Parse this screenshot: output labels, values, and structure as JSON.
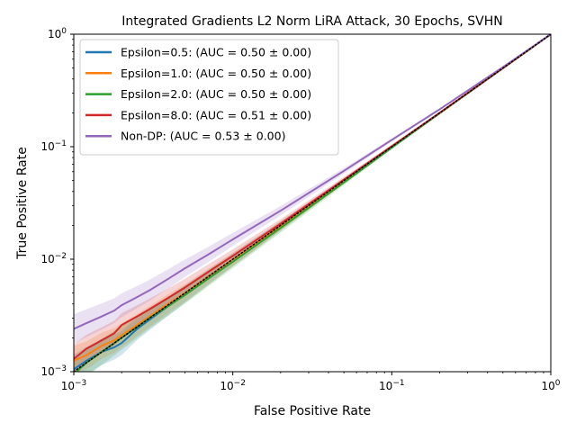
{
  "chart_data": {
    "type": "line",
    "title": "Integrated Gradients L2 Norm LiRA Attack, 30 Epochs, SVHN",
    "xlabel": "False Positive Rate",
    "ylabel": "True Positive Rate",
    "xscale": "log",
    "yscale": "log",
    "xlim": [
      0.001,
      1
    ],
    "ylim": [
      0.001,
      1
    ],
    "grid": false,
    "legend_position": "top-left",
    "x_ticks": [
      {
        "value": 0.001,
        "base": "10",
        "exp": "−3"
      },
      {
        "value": 0.01,
        "base": "10",
        "exp": "−2"
      },
      {
        "value": 0.1,
        "base": "10",
        "exp": "−1"
      },
      {
        "value": 1,
        "base": "10",
        "exp": "0"
      }
    ],
    "y_ticks": [
      {
        "value": 0.001,
        "base": "10",
        "exp": "−3"
      },
      {
        "value": 0.01,
        "base": "10",
        "exp": "−2"
      },
      {
        "value": 0.1,
        "base": "10",
        "exp": "−1"
      },
      {
        "value": 1,
        "base": "10",
        "exp": "0"
      }
    ],
    "series": [
      {
        "name": "Epsilon=0.5: (AUC = 0.50 ± 0.00)",
        "color": "#1f77b4",
        "x": [
          0.001,
          0.0012,
          0.0015,
          0.0018,
          0.002,
          0.0025,
          0.003,
          0.004,
          0.005,
          0.007,
          0.01,
          0.02,
          0.05,
          0.1,
          0.2,
          0.5,
          1
        ],
        "y": [
          0.00105,
          0.00125,
          0.0015,
          0.00165,
          0.0018,
          0.0024,
          0.0029,
          0.0039,
          0.0049,
          0.0069,
          0.0099,
          0.0198,
          0.0497,
          0.0995,
          0.199,
          0.499,
          1
        ]
      },
      {
        "name": "Epsilon=1.0: (AUC = 0.50 ± 0.00)",
        "color": "#ff7f0e",
        "x": [
          0.001,
          0.0012,
          0.0015,
          0.0018,
          0.002,
          0.0025,
          0.003,
          0.004,
          0.005,
          0.007,
          0.01,
          0.02,
          0.05,
          0.1,
          0.2,
          0.5,
          1
        ],
        "y": [
          0.00125,
          0.0014,
          0.0017,
          0.0019,
          0.0021,
          0.0026,
          0.0031,
          0.0041,
          0.005,
          0.007,
          0.0099,
          0.0197,
          0.0495,
          0.0993,
          0.199,
          0.499,
          1
        ]
      },
      {
        "name": "Epsilon=2.0: (AUC = 0.50 ± 0.00)",
        "color": "#2ca02c",
        "x": [
          0.001,
          0.0012,
          0.0015,
          0.0018,
          0.002,
          0.0025,
          0.003,
          0.004,
          0.005,
          0.007,
          0.01,
          0.02,
          0.05,
          0.1,
          0.2,
          0.5,
          1
        ],
        "y": [
          0.00095,
          0.0012,
          0.0015,
          0.0018,
          0.002,
          0.0025,
          0.003,
          0.0039,
          0.0048,
          0.0067,
          0.0095,
          0.019,
          0.048,
          0.098,
          0.198,
          0.498,
          1
        ]
      },
      {
        "name": "Epsilon=8.0: (AUC = 0.51 ± 0.00)",
        "color": "#d62728",
        "x": [
          0.001,
          0.0012,
          0.0015,
          0.0018,
          0.002,
          0.0025,
          0.003,
          0.004,
          0.005,
          0.007,
          0.01,
          0.02,
          0.05,
          0.1,
          0.2,
          0.5,
          1
        ],
        "y": [
          0.0013,
          0.0016,
          0.0019,
          0.0022,
          0.0026,
          0.0031,
          0.0036,
          0.0046,
          0.0056,
          0.0077,
          0.0107,
          0.0207,
          0.051,
          0.101,
          0.2,
          0.5,
          1
        ]
      },
      {
        "name": "Non-DP: (AUC = 0.53 ± 0.00)",
        "color": "#9467bd",
        "x": [
          0.001,
          0.0012,
          0.0015,
          0.0018,
          0.002,
          0.0025,
          0.003,
          0.004,
          0.005,
          0.007,
          0.01,
          0.02,
          0.05,
          0.1,
          0.2,
          0.5,
          1
        ],
        "y": [
          0.0024,
          0.0027,
          0.0031,
          0.0035,
          0.0039,
          0.0046,
          0.0053,
          0.0068,
          0.0083,
          0.011,
          0.015,
          0.027,
          0.061,
          0.115,
          0.215,
          0.51,
          1
        ]
      }
    ],
    "reference_line": {
      "style": "dotted",
      "color": "#000000",
      "x": [
        0.001,
        1
      ],
      "y": [
        0.001,
        1
      ]
    }
  }
}
